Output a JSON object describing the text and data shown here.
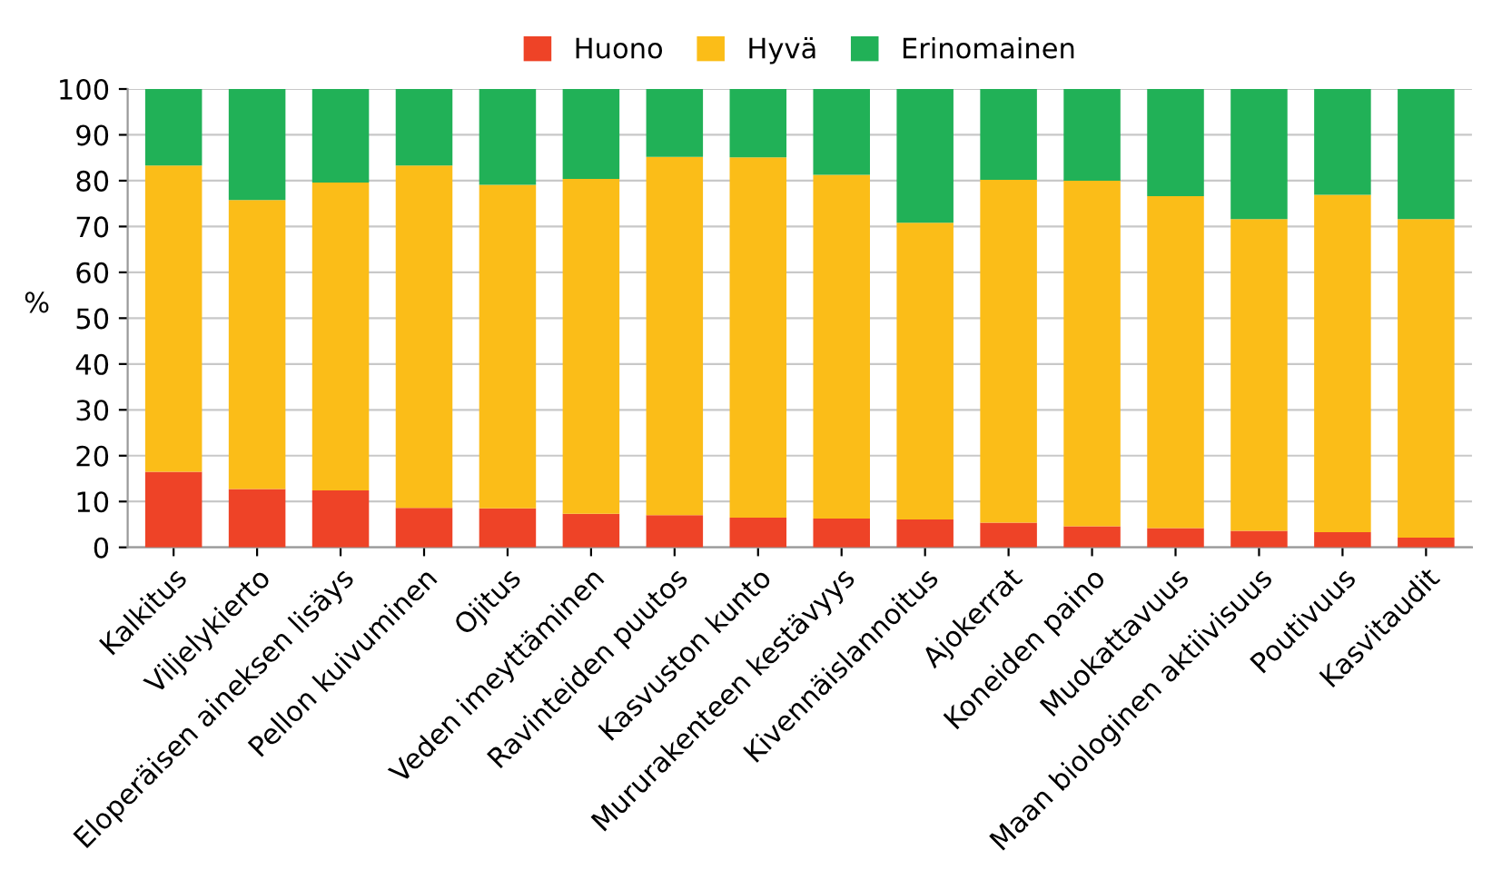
{
  "chart_data": {
    "type": "bar",
    "stacked": true,
    "ylabel": "%",
    "categories": [
      "Kalkitus",
      "Viljelykierto",
      "Eloperäisen aineksen lisäys",
      "Pellon kuivuminen",
      "Ojitus",
      "Veden imeyttäminen",
      "Ravinteiden puutos",
      "Kasvuston kunto",
      "Mururakenteen kestävyys",
      "Kivennäislannoitus",
      "Ajokerrat",
      "Koneiden paino",
      "Muokattavuus",
      "Maan biologinen aktiivisuus",
      "Poutivuus",
      "Kasvitaudit"
    ],
    "series": [
      {
        "name": "Huono",
        "color": "#ee4327",
        "values": [
          16.5,
          12.7,
          12.4,
          8.6,
          8.5,
          7.3,
          7.0,
          6.5,
          6.3,
          6.1,
          5.4,
          4.6,
          4.2,
          3.6,
          3.3,
          2.1
        ]
      },
      {
        "name": "Hyvä",
        "color": "#fbbd18",
        "values": [
          66.8,
          63.1,
          67.2,
          74.7,
          70.6,
          73.1,
          78.2,
          78.6,
          75.0,
          64.7,
          74.8,
          75.4,
          72.4,
          68.0,
          73.6,
          69.5
        ]
      },
      {
        "name": "Erinomainen",
        "color": "#21b157",
        "values": [
          16.7,
          24.2,
          20.4,
          16.7,
          20.9,
          19.6,
          14.8,
          14.9,
          18.7,
          29.2,
          19.8,
          20.0,
          23.4,
          28.4,
          23.1,
          28.4
        ]
      }
    ],
    "ylim": [
      0,
      100
    ],
    "yticks": [
      0,
      10,
      20,
      30,
      40,
      50,
      60,
      70,
      80,
      90,
      100
    ],
    "grid": "y",
    "legend": "top"
  }
}
